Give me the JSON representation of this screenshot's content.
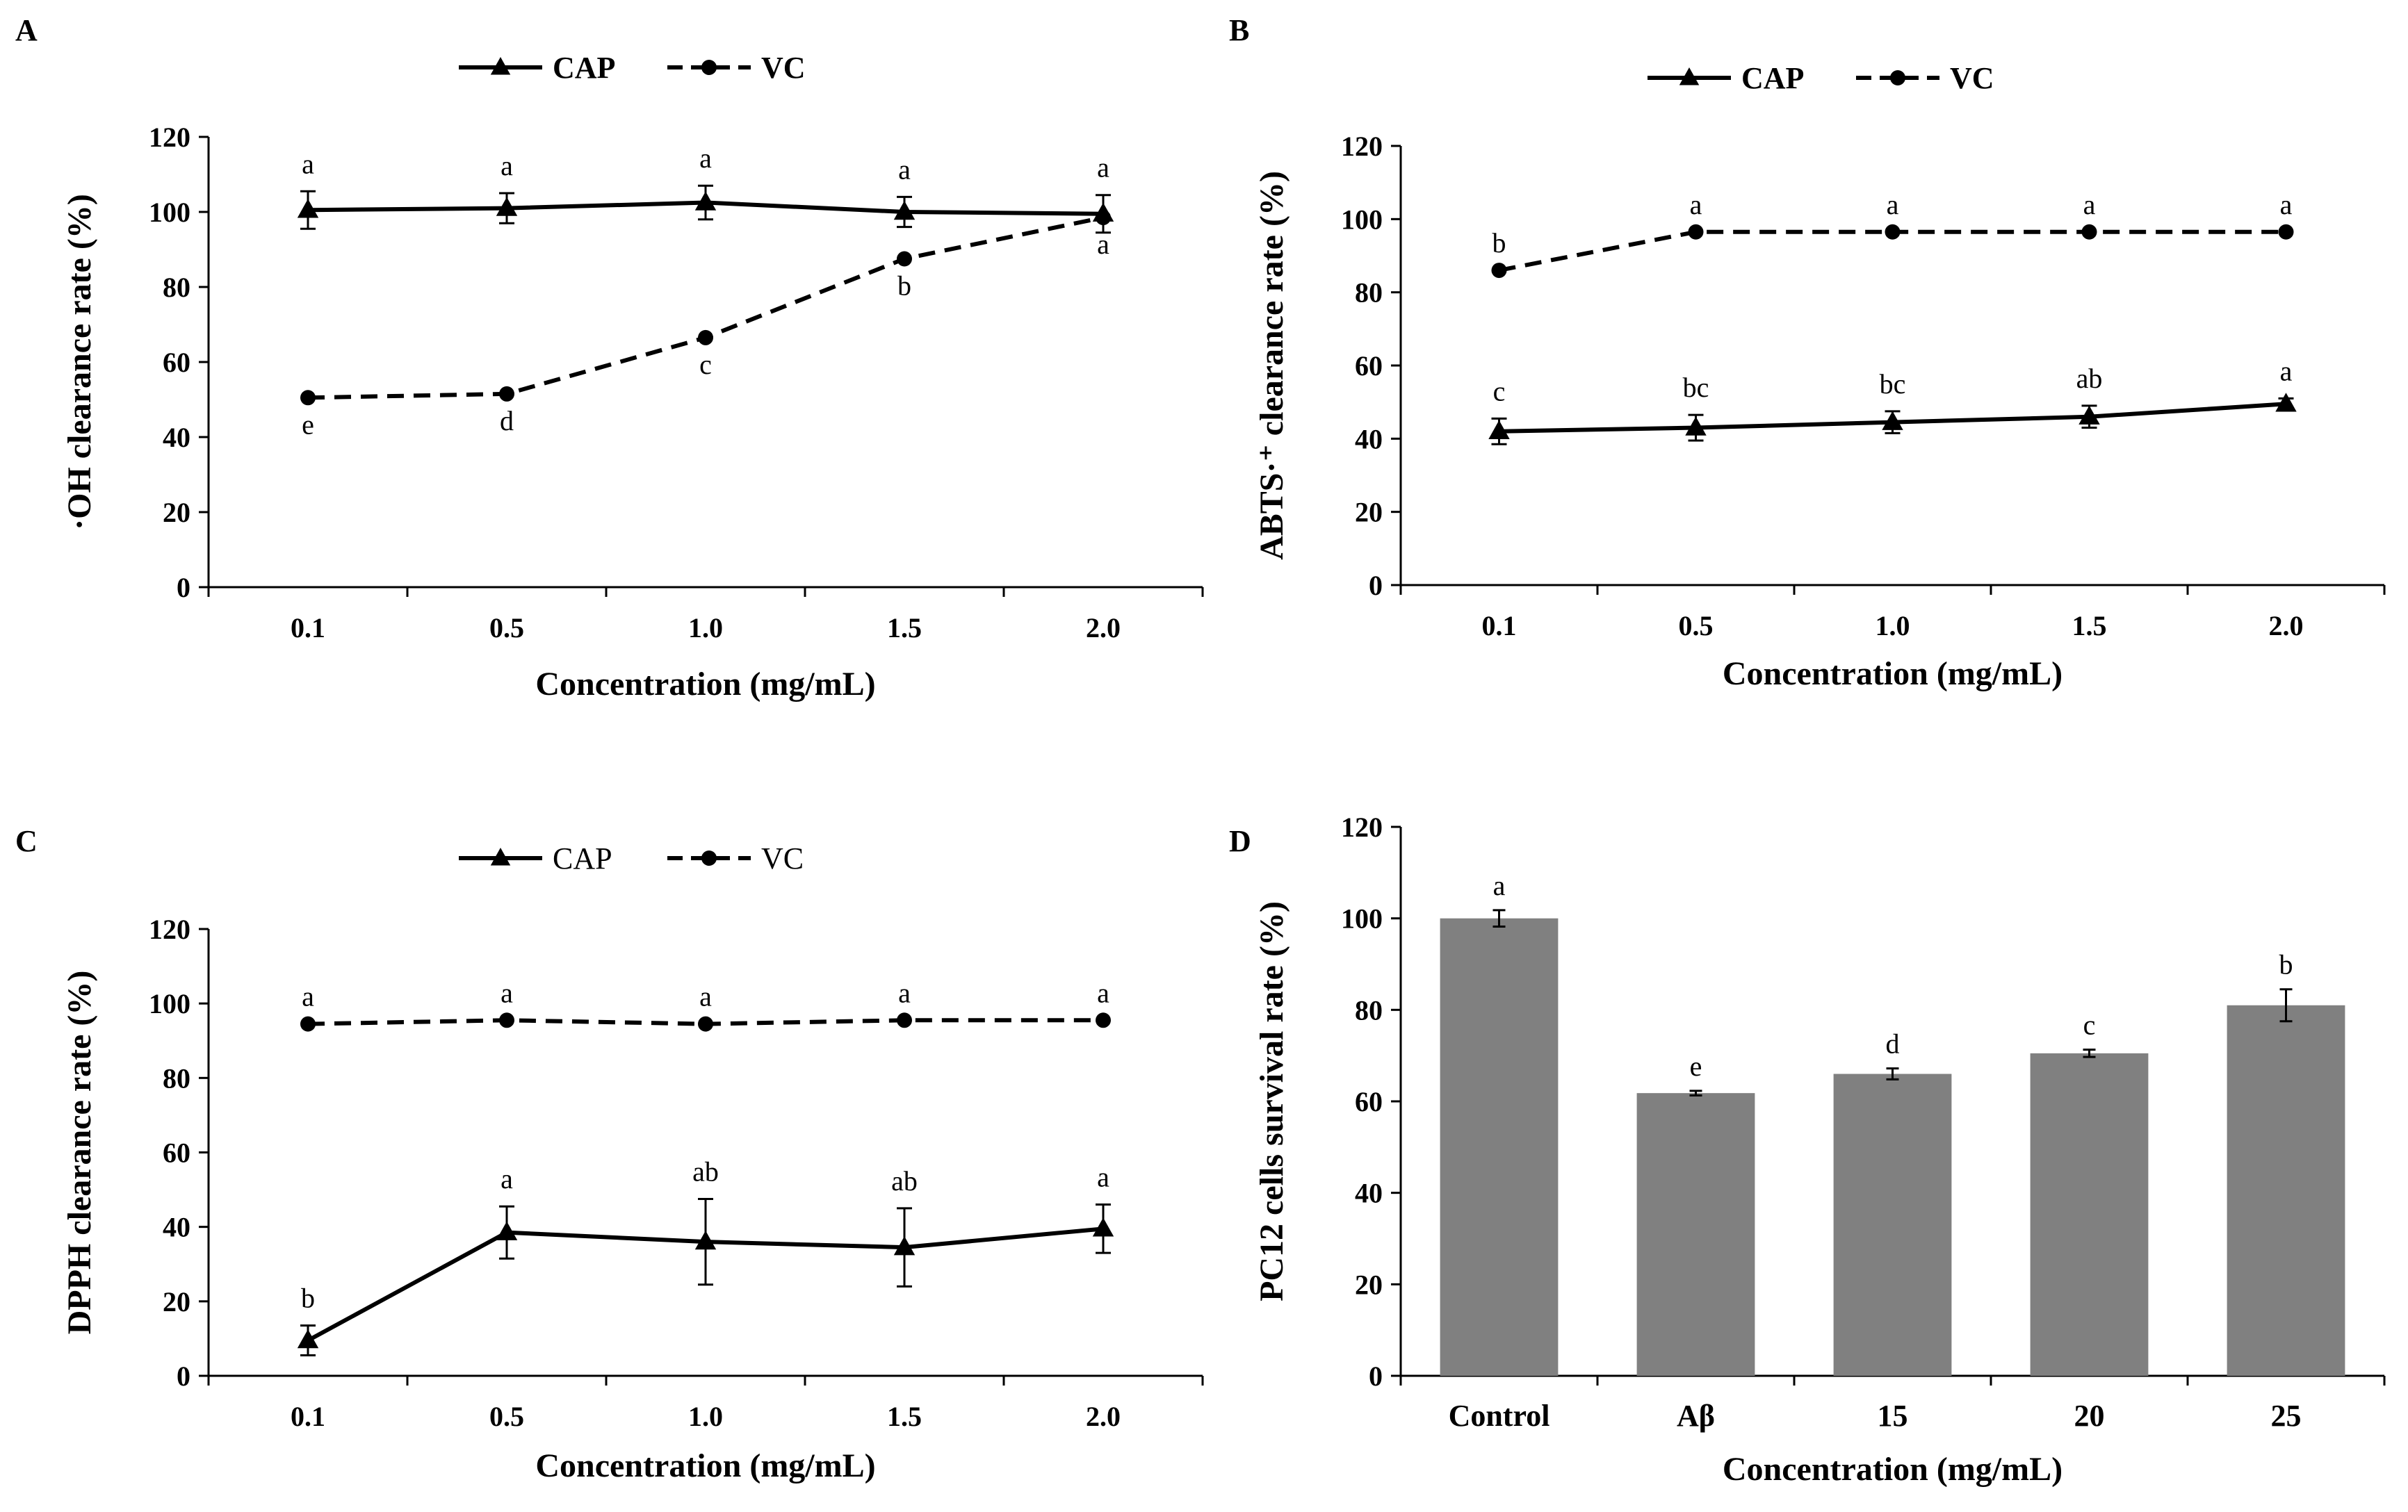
{
  "figure": {
    "panels": [
      {
        "letter": "A"
      },
      {
        "letter": "B"
      },
      {
        "letter": "C"
      },
      {
        "letter": "D"
      }
    ]
  },
  "chart_data": [
    {
      "panel": "A",
      "type": "line",
      "categories": [
        "0.1",
        "0.5",
        "1.0",
        "1.5",
        "2.0"
      ],
      "xlabel": "Concentration (mg/mL)",
      "ylabel": "·OH clearance rate (%)",
      "ylim": [
        0,
        120
      ],
      "yticks": [
        0,
        20,
        40,
        60,
        80,
        100,
        120
      ],
      "legend_position": "top-center",
      "legend_bold": true,
      "grid": false,
      "series": [
        {
          "name": "CAP",
          "marker": "triangle",
          "line": "solid",
          "values": [
            100.5,
            101,
            102.5,
            100,
            99.5
          ],
          "errors": [
            5,
            4,
            4.5,
            4,
            5
          ],
          "letters": [
            "a",
            "a",
            "a",
            "a",
            "a"
          ],
          "letter_pos": "above"
        },
        {
          "name": "VC",
          "marker": "circle",
          "line": "dashed",
          "values": [
            50.5,
            51.5,
            66.5,
            87.5,
            98.5
          ],
          "errors": [
            0,
            0,
            0,
            0,
            0
          ],
          "letters": [
            "e",
            "d",
            "c",
            "b",
            "a"
          ],
          "letter_pos": "below"
        }
      ]
    },
    {
      "panel": "B",
      "type": "line",
      "categories": [
        "0.1",
        "0.5",
        "1.0",
        "1.5",
        "2.0"
      ],
      "xlabel": "Concentration (mg/mL)",
      "ylabel": "ABTS·⁺ clearance rate (%)",
      "ylim": [
        0,
        120
      ],
      "yticks": [
        0,
        20,
        40,
        60,
        80,
        100,
        120
      ],
      "legend_position": "top-center",
      "legend_bold": true,
      "grid": false,
      "series": [
        {
          "name": "CAP",
          "marker": "triangle",
          "line": "solid",
          "values": [
            42,
            43,
            44.5,
            46,
            49.5
          ],
          "errors": [
            3.5,
            3.5,
            3,
            3,
            1.5
          ],
          "letters": [
            "c",
            "bc",
            "bc",
            "ab",
            "a"
          ],
          "letter_pos": "above"
        },
        {
          "name": "VC",
          "marker": "circle",
          "line": "dashed",
          "values": [
            86,
            96.5,
            96.5,
            96.5,
            96.5
          ],
          "errors": [
            0,
            0,
            0,
            0,
            0
          ],
          "letters": [
            "b",
            "a",
            "a",
            "a",
            "a"
          ],
          "letter_pos": "above"
        }
      ]
    },
    {
      "panel": "C",
      "type": "line",
      "categories": [
        "0.1",
        "0.5",
        "1.0",
        "1.5",
        "2.0"
      ],
      "xlabel": "Concentration (mg/mL)",
      "ylabel": "DPPH clearance rate (%)",
      "ylim": [
        0,
        120
      ],
      "yticks": [
        0,
        20,
        40,
        60,
        80,
        100,
        120
      ],
      "legend_position": "top-center",
      "legend_bold": false,
      "grid": false,
      "series": [
        {
          "name": "CAP",
          "marker": "triangle",
          "line": "solid",
          "values": [
            9.5,
            38.5,
            36,
            34.5,
            39.5
          ],
          "errors": [
            4,
            7,
            11.5,
            10.5,
            6.5
          ],
          "letters": [
            "b",
            "a",
            "ab",
            "ab",
            "a"
          ],
          "letter_pos": "above"
        },
        {
          "name": "VC",
          "marker": "circle",
          "line": "dashed",
          "values": [
            94.5,
            95.5,
            94.5,
            95.5,
            95.5
          ],
          "errors": [
            0,
            0,
            0,
            0,
            0
          ],
          "letters": [
            "a",
            "a",
            "a",
            "a",
            "a"
          ],
          "letter_pos": "above"
        }
      ]
    },
    {
      "panel": "D",
      "type": "bar",
      "categories": [
        "Control",
        "Aβ",
        "15",
        "20",
        "25"
      ],
      "xlabel": "Concentration (mg/mL)",
      "ylabel": "PC12 cells survival rate (%)",
      "ylim": [
        0,
        120
      ],
      "yticks": [
        0,
        20,
        40,
        60,
        80,
        100,
        120
      ],
      "grid": false,
      "bar_color": "#808080",
      "values": [
        100,
        61.8,
        66,
        70.5,
        81
      ],
      "errors": [
        1.8,
        0.5,
        1.2,
        0.8,
        3.5
      ],
      "letters": [
        "a",
        "e",
        "d",
        "c",
        "b"
      ]
    }
  ]
}
